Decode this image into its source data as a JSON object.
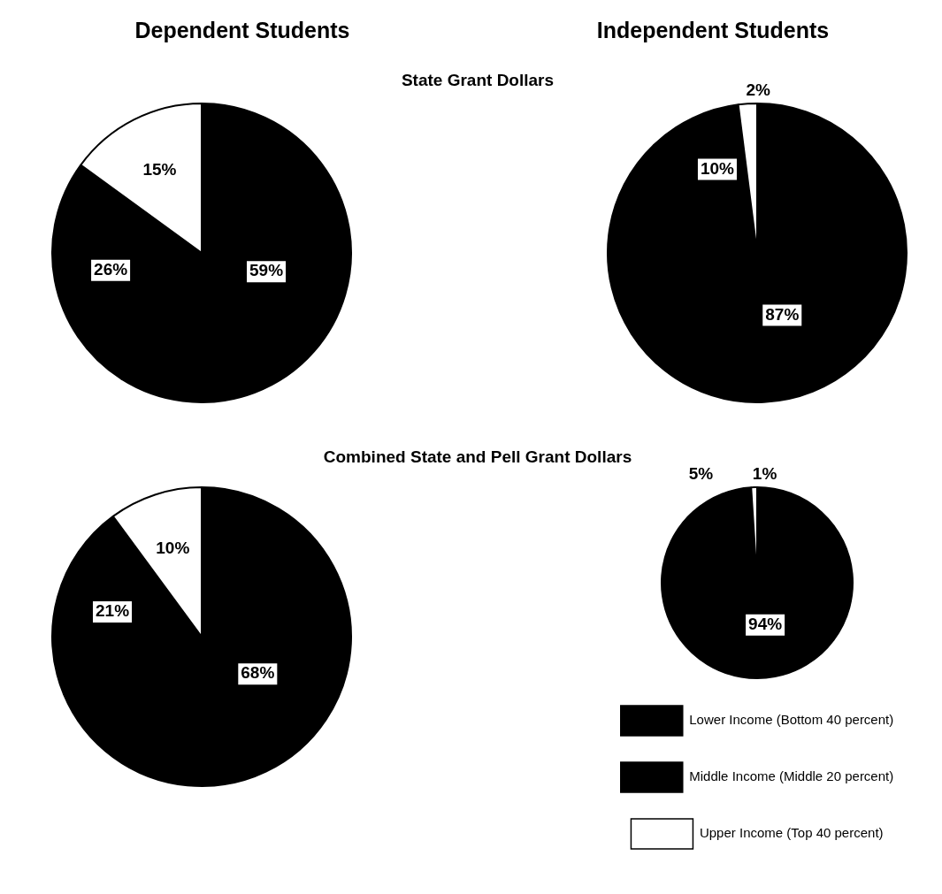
{
  "chart_data": [
    {
      "type": "pie",
      "title": "Dependent Students",
      "subtitle": "State Grant Dollars",
      "categories": [
        null,
        null,
        null
      ],
      "values": [
        59,
        26,
        15
      ],
      "value_labels": [
        "59%",
        "26%",
        "15%"
      ],
      "colors": [
        "#000000",
        "#000000",
        "#ffffff"
      ]
    },
    {
      "type": "pie",
      "title": "Independent Students",
      "categories": [
        null,
        null,
        null
      ],
      "values": [
        87,
        10,
        2
      ],
      "value_labels": [
        "87%",
        "10%",
        "2%"
      ],
      "colors": [
        "#000000",
        "#000000",
        "#ffffff"
      ]
    },
    {
      "type": "pie",
      "subtitle": "Combined State and Pell Grant Dollars",
      "categories": [
        null,
        null,
        null
      ],
      "values": [
        68,
        21,
        10
      ],
      "value_labels": [
        "68%",
        "21%",
        "10%"
      ],
      "colors": [
        "#000000",
        "#000000",
        "#ffffff"
      ]
    },
    {
      "type": "pie",
      "categories": [
        "Lower Income (Bottom 40 percent)",
        "Middle Income (Middle 20 percent)",
        "Upper Income (Top 40 percent)"
      ],
      "values": [
        94,
        5,
        1
      ],
      "value_labels": [
        "94%",
        "5%",
        "1%"
      ],
      "colors": [
        "#000000",
        "#000000",
        "#ffffff"
      ],
      "legend": "bottom"
    }
  ]
}
